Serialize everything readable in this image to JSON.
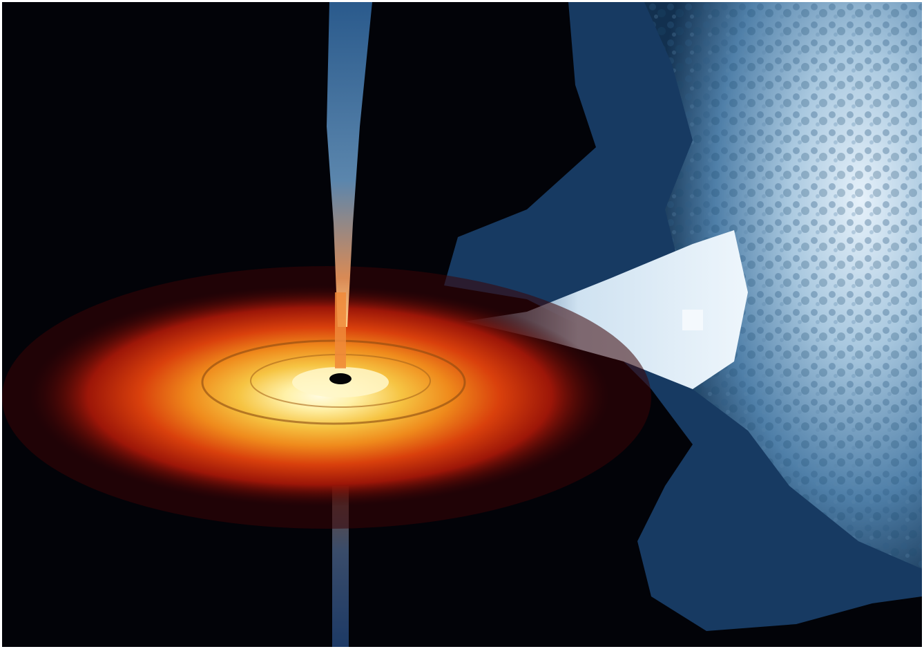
{
  "image": {
    "subject": "black-hole-accretion-disk-with-companion-star",
    "palette": {
      "space": "#020308",
      "disk_outer": "#5a0606",
      "disk_mid": "#d2310a",
      "disk_inner": "#f5a21d",
      "disk_core": "#fff6b8",
      "jet": "#3d6a9a",
      "star_light": "#c9ddee",
      "star_dark": "#2b5d87",
      "gas_stream": "#dcebf7"
    }
  }
}
